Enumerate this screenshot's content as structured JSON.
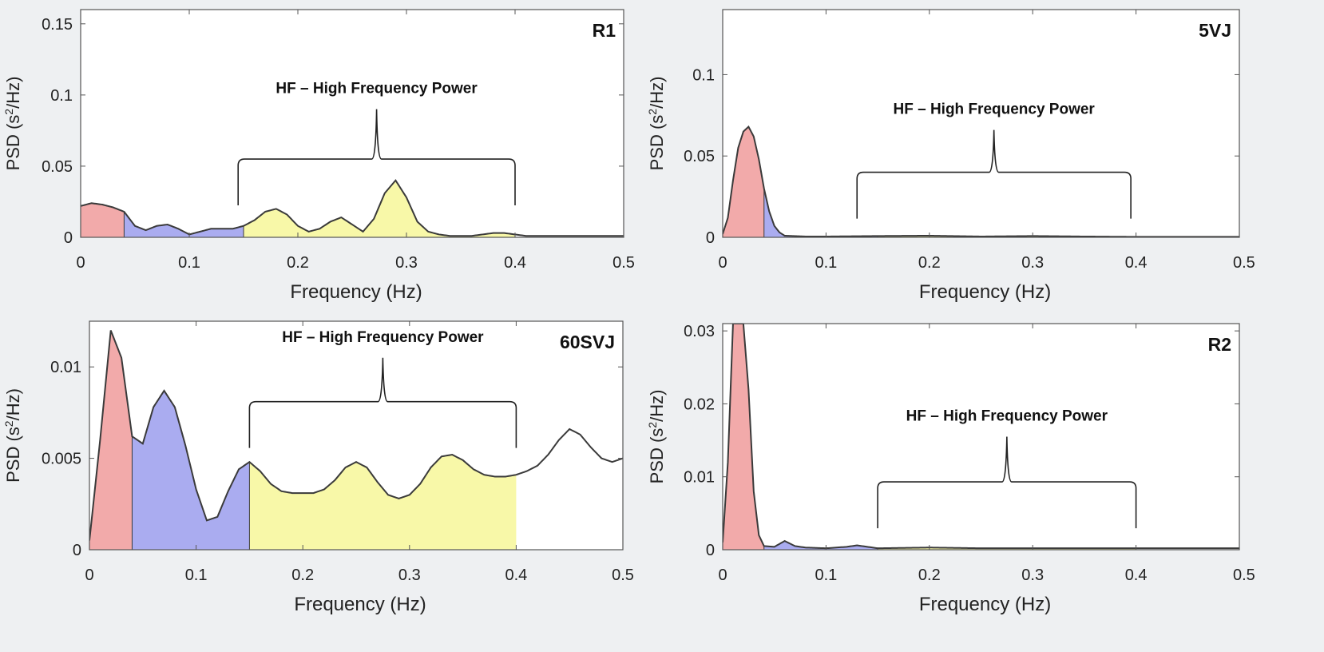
{
  "colors": {
    "vlf": "#f2aaaa",
    "lf": "#aaacf0",
    "hf": "#f8f8a8",
    "curve": "#3a3a3a",
    "frame": "#555555",
    "bg": "#ffffff"
  },
  "chart_data": [
    {
      "type": "area",
      "title": "R1",
      "xlabel": "Frequency (Hz)",
      "ylabel_main": "PSD (s",
      "ylabel_sup": "2",
      "ylabel_tail": "/Hz)",
      "annotation": "HF – High Frequency Power",
      "xlim": [
        0,
        0.5
      ],
      "ylim": [
        0,
        0.16
      ],
      "xticks": [
        0,
        0.1,
        0.2,
        0.3,
        0.4,
        0.5
      ],
      "xtick_labels": [
        "0",
        "0.1",
        "0.2",
        "0.3",
        "0.4",
        "0.5"
      ],
      "yticks": [
        0,
        0.05,
        0.1,
        0.15
      ],
      "ytick_labels": [
        "0",
        "0.05",
        "0.1",
        "0.15"
      ],
      "bands": {
        "vlf": [
          0,
          0.04
        ],
        "lf": [
          0.04,
          0.15
        ],
        "hf": [
          0.15,
          0.4
        ]
      },
      "bracket_range": [
        0.145,
        0.4
      ],
      "bracket_level": 0.055,
      "bracket_peak": 0.09,
      "x": [
        0,
        0.01,
        0.02,
        0.03,
        0.04,
        0.05,
        0.06,
        0.07,
        0.08,
        0.09,
        0.1,
        0.11,
        0.12,
        0.13,
        0.14,
        0.15,
        0.16,
        0.17,
        0.18,
        0.19,
        0.2,
        0.21,
        0.22,
        0.23,
        0.24,
        0.25,
        0.26,
        0.27,
        0.28,
        0.29,
        0.3,
        0.31,
        0.32,
        0.33,
        0.34,
        0.35,
        0.36,
        0.37,
        0.38,
        0.39,
        0.4,
        0.41,
        0.42,
        0.43,
        0.44,
        0.45,
        0.46,
        0.47,
        0.48,
        0.49,
        0.5
      ],
      "y": [
        0.022,
        0.024,
        0.023,
        0.021,
        0.018,
        0.008,
        0.005,
        0.008,
        0.009,
        0.006,
        0.002,
        0.004,
        0.006,
        0.006,
        0.006,
        0.008,
        0.012,
        0.018,
        0.02,
        0.016,
        0.008,
        0.004,
        0.006,
        0.011,
        0.014,
        0.009,
        0.004,
        0.013,
        0.031,
        0.04,
        0.028,
        0.011,
        0.004,
        0.002,
        0.001,
        0.001,
        0.001,
        0.002,
        0.003,
        0.003,
        0.002,
        0.001,
        0.001,
        0.001,
        0.001,
        0.001,
        0.001,
        0.001,
        0.001,
        0.001,
        0.001
      ]
    },
    {
      "type": "area",
      "title": "5VJ",
      "xlabel": "Frequency (Hz)",
      "ylabel_main": "PSD (s",
      "ylabel_sup": "2",
      "ylabel_tail": "/Hz)",
      "annotation": "HF – High Frequency Power",
      "xlim": [
        0,
        0.5
      ],
      "ylim": [
        0,
        0.14
      ],
      "xticks": [
        0,
        0.1,
        0.2,
        0.3,
        0.4,
        0.5
      ],
      "xtick_labels": [
        "0",
        "0.1",
        "0.2",
        "0.3",
        "0.4",
        "0.5"
      ],
      "yticks": [
        0,
        0.05,
        0.1
      ],
      "ytick_labels": [
        "0",
        "0.05",
        "0.1"
      ],
      "bands": {
        "vlf": [
          0,
          0.04
        ],
        "lf": [
          0.04,
          0.15
        ],
        "hf": [
          0.15,
          0.4
        ]
      },
      "bracket_range": [
        0.13,
        0.395
      ],
      "bracket_level": 0.04,
      "bracket_peak": 0.066,
      "x": [
        0,
        0.005,
        0.01,
        0.015,
        0.02,
        0.025,
        0.03,
        0.035,
        0.04,
        0.045,
        0.05,
        0.055,
        0.06,
        0.08,
        0.1,
        0.15,
        0.2,
        0.25,
        0.3,
        0.35,
        0.4,
        0.45,
        0.5
      ],
      "y": [
        0.002,
        0.012,
        0.035,
        0.055,
        0.065,
        0.068,
        0.062,
        0.048,
        0.03,
        0.016,
        0.007,
        0.003,
        0.001,
        0.0005,
        0.0005,
        0.0008,
        0.001,
        0.0005,
        0.0008,
        0.0005,
        0.0003,
        0.0003,
        0.0003
      ]
    },
    {
      "type": "area",
      "title": "60SVJ",
      "xlabel": "Frequency (Hz)",
      "ylabel_main": "PSD (s",
      "ylabel_sup": "2",
      "ylabel_tail": "/Hz)",
      "annotation": "HF – High Frequency Power",
      "xlim": [
        0,
        0.5
      ],
      "ylim": [
        0,
        0.0125
      ],
      "xticks": [
        0,
        0.1,
        0.2,
        0.3,
        0.4,
        0.5
      ],
      "xtick_labels": [
        "0",
        "0.1",
        "0.2",
        "0.3",
        "0.4",
        "0.5"
      ],
      "yticks": [
        0,
        0.005,
        0.01
      ],
      "ytick_labels": [
        "0",
        "0.005",
        "0.01"
      ],
      "bands": {
        "vlf": [
          0,
          0.04
        ],
        "lf": [
          0.04,
          0.15
        ],
        "hf": [
          0.15,
          0.4
        ]
      },
      "bracket_range": [
        0.15,
        0.4
      ],
      "bracket_level": 0.0081,
      "bracket_peak": 0.0105,
      "x": [
        0,
        0.01,
        0.02,
        0.03,
        0.04,
        0.05,
        0.06,
        0.07,
        0.08,
        0.09,
        0.1,
        0.11,
        0.12,
        0.13,
        0.14,
        0.15,
        0.16,
        0.17,
        0.18,
        0.19,
        0.2,
        0.21,
        0.22,
        0.23,
        0.24,
        0.25,
        0.26,
        0.27,
        0.28,
        0.29,
        0.3,
        0.31,
        0.32,
        0.33,
        0.34,
        0.35,
        0.36,
        0.37,
        0.38,
        0.39,
        0.4,
        0.41,
        0.42,
        0.43,
        0.44,
        0.45,
        0.46,
        0.47,
        0.48,
        0.49,
        0.5
      ],
      "y": [
        0.0005,
        0.006,
        0.012,
        0.0105,
        0.0062,
        0.0058,
        0.0078,
        0.0087,
        0.0078,
        0.0057,
        0.0033,
        0.0016,
        0.0018,
        0.0032,
        0.0044,
        0.0048,
        0.0043,
        0.0036,
        0.0032,
        0.0031,
        0.0031,
        0.0031,
        0.0033,
        0.0038,
        0.0045,
        0.0048,
        0.0045,
        0.0037,
        0.003,
        0.0028,
        0.003,
        0.0036,
        0.0045,
        0.0051,
        0.0052,
        0.0049,
        0.0044,
        0.0041,
        0.004,
        0.004,
        0.0041,
        0.0043,
        0.0046,
        0.0052,
        0.006,
        0.0066,
        0.0063,
        0.0056,
        0.005,
        0.0048,
        0.005
      ]
    },
    {
      "type": "area",
      "title": "R2",
      "xlabel": "Frequency (Hz)",
      "ylabel_main": "PSD (s",
      "ylabel_sup": "2",
      "ylabel_tail": "/Hz)",
      "annotation": "HF – High Frequency Power",
      "xlim": [
        0,
        0.5
      ],
      "ylim": [
        0,
        0.031
      ],
      "xticks": [
        0,
        0.1,
        0.2,
        0.3,
        0.4,
        0.5
      ],
      "xtick_labels": [
        "0",
        "0.1",
        "0.2",
        "0.3",
        "0.4",
        "0.5"
      ],
      "yticks": [
        0,
        0.01,
        0.02,
        0.03
      ],
      "ytick_labels": [
        "0",
        "0.01",
        "0.02",
        "0.03"
      ],
      "bands": {
        "vlf": [
          0,
          0.04
        ],
        "lf": [
          0.04,
          0.15
        ],
        "hf": [
          0.15,
          0.4
        ]
      },
      "bracket_range": [
        0.15,
        0.4
      ],
      "bracket_level": 0.0093,
      "bracket_peak": 0.0155,
      "x": [
        0,
        0.005,
        0.01,
        0.015,
        0.02,
        0.025,
        0.03,
        0.035,
        0.04,
        0.05,
        0.06,
        0.07,
        0.08,
        0.1,
        0.12,
        0.13,
        0.14,
        0.15,
        0.2,
        0.25,
        0.3,
        0.35,
        0.4,
        0.45,
        0.5
      ],
      "y": [
        0.001,
        0.012,
        0.031,
        0.031,
        0.031,
        0.022,
        0.008,
        0.002,
        0.0005,
        0.0004,
        0.0012,
        0.0005,
        0.0003,
        0.0002,
        0.0004,
        0.0006,
        0.0004,
        0.0002,
        0.0003,
        0.0002,
        0.0002,
        0.0002,
        0.0002,
        0.0002,
        0.0002
      ]
    }
  ]
}
